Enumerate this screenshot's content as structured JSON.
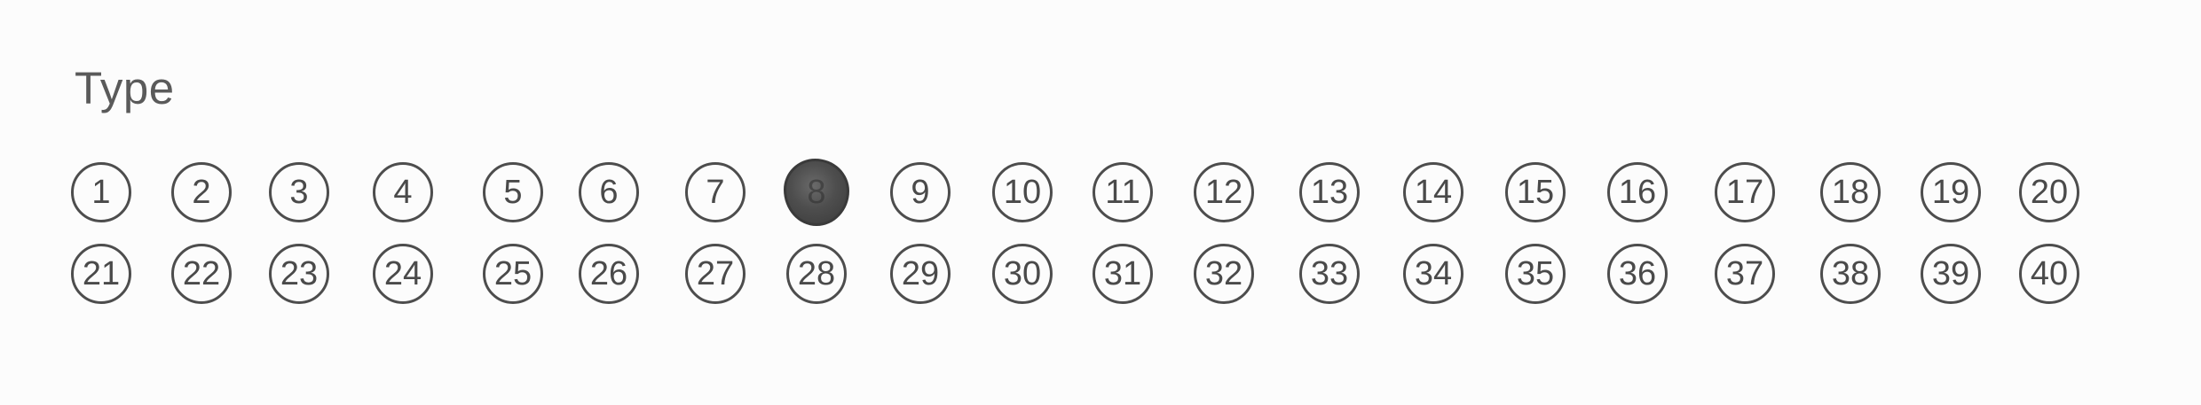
{
  "form": {
    "title": "Type",
    "selected": "8",
    "row1": [
      {
        "label": "1",
        "filled": false
      },
      {
        "label": "2",
        "filled": false
      },
      {
        "label": "3",
        "filled": false
      },
      {
        "label": "4",
        "filled": false
      },
      {
        "label": "5",
        "filled": false
      },
      {
        "label": "6",
        "filled": false
      },
      {
        "label": "7",
        "filled": false
      },
      {
        "label": "8",
        "filled": true
      },
      {
        "label": "9",
        "filled": false
      },
      {
        "label": "10",
        "filled": false
      },
      {
        "label": "11",
        "filled": false
      },
      {
        "label": "12",
        "filled": false
      },
      {
        "label": "13",
        "filled": false
      },
      {
        "label": "14",
        "filled": false
      },
      {
        "label": "15",
        "filled": false
      },
      {
        "label": "16",
        "filled": false
      },
      {
        "label": "17",
        "filled": false
      },
      {
        "label": "18",
        "filled": false
      },
      {
        "label": "19",
        "filled": false
      },
      {
        "label": "20",
        "filled": false
      }
    ],
    "row2": [
      {
        "label": "21",
        "filled": false
      },
      {
        "label": "22",
        "filled": false
      },
      {
        "label": "23",
        "filled": false
      },
      {
        "label": "24",
        "filled": false
      },
      {
        "label": "25",
        "filled": false
      },
      {
        "label": "26",
        "filled": false
      },
      {
        "label": "27",
        "filled": false
      },
      {
        "label": "28",
        "filled": false
      },
      {
        "label": "29",
        "filled": false
      },
      {
        "label": "30",
        "filled": false
      },
      {
        "label": "31",
        "filled": false
      },
      {
        "label": "32",
        "filled": false
      },
      {
        "label": "33",
        "filled": false
      },
      {
        "label": "34",
        "filled": false
      },
      {
        "label": "35",
        "filled": false
      },
      {
        "label": "36",
        "filled": false
      },
      {
        "label": "37",
        "filled": false
      },
      {
        "label": "38",
        "filled": false
      },
      {
        "label": "39",
        "filled": false
      },
      {
        "label": "40",
        "filled": false
      }
    ]
  }
}
